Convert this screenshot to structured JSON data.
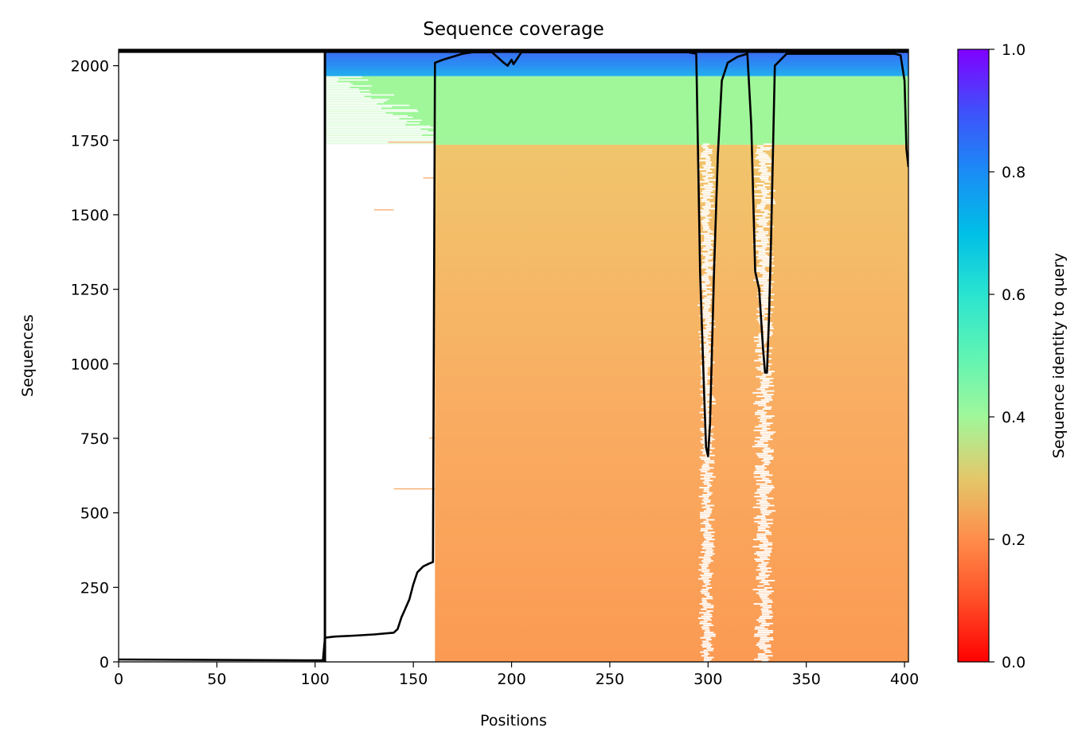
{
  "chart_data": {
    "type": "heatmap",
    "title": "Sequence coverage",
    "xlabel": "Positions",
    "ylabel": "Sequences",
    "xlim": [
      0,
      402
    ],
    "ylim": [
      0,
      2055
    ],
    "xticks": [
      0,
      50,
      100,
      150,
      200,
      250,
      300,
      350,
      400
    ],
    "yticks": [
      0,
      250,
      500,
      750,
      1000,
      1250,
      1500,
      1750,
      2000
    ],
    "colorbar": {
      "label": "Sequence identity to query",
      "colormap": "rainbow_r",
      "range": [
        0.0,
        1.0
      ],
      "ticks": [
        0.0,
        0.2,
        0.4,
        0.6,
        0.8,
        1.0
      ]
    },
    "identity_bands": [
      {
        "rows": [
          0,
          1735
        ],
        "identity": 0.25,
        "color": "#f7a55d"
      },
      {
        "rows": [
          1735,
          1965
        ],
        "identity": 0.42,
        "color": "#a0f79a"
      },
      {
        "rows": [
          1965,
          2045
        ],
        "identity": 0.83,
        "color": "#3b82f6"
      }
    ],
    "coverage_gaps": [
      {
        "positions": [
          0,
          105
        ],
        "description": "no coverage"
      },
      {
        "positions": [
          296,
          303
        ]
      },
      {
        "positions": [
          324,
          333
        ]
      }
    ],
    "coverage_line": {
      "x": [
        0,
        104,
        105,
        106,
        110,
        120,
        130,
        140,
        142,
        144,
        146,
        148,
        150,
        152,
        155,
        158,
        160,
        161,
        165,
        170,
        175,
        180,
        190,
        196,
        198,
        200,
        201,
        205,
        220,
        240,
        260,
        280,
        290,
        294,
        296,
        298,
        299,
        300,
        301,
        303,
        305,
        307,
        310,
        315,
        320,
        322,
        324,
        326,
        328,
        329,
        330,
        331,
        332,
        334,
        340,
        350,
        360,
        370,
        380,
        390,
        395,
        398,
        400,
        401,
        402
      ],
      "y": [
        8,
        5,
        80,
        82,
        85,
        88,
        92,
        98,
        110,
        150,
        180,
        210,
        260,
        300,
        320,
        330,
        335,
        2010,
        2020,
        2030,
        2040,
        2045,
        2045,
        2010,
        2000,
        2020,
        2005,
        2045,
        2045,
        2045,
        2045,
        2045,
        2045,
        2040,
        1300,
        900,
        720,
        690,
        800,
        1300,
        1700,
        1950,
        2010,
        2030,
        2040,
        1800,
        1310,
        1250,
        1050,
        970,
        970,
        1150,
        1400,
        2000,
        2040,
        2040,
        2040,
        2040,
        2040,
        2040,
        2040,
        2035,
        1950,
        1720,
        1660
      ]
    }
  }
}
